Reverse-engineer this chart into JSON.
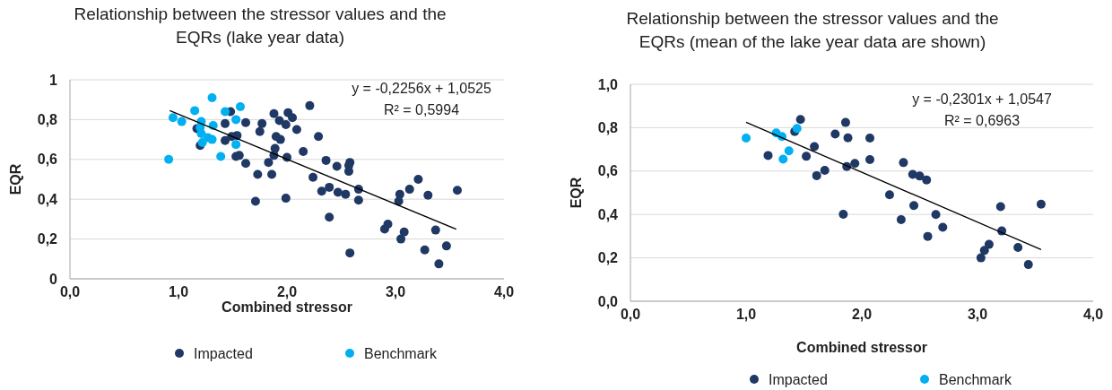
{
  "chart_data": [
    {
      "type": "scatter",
      "title": "Relationship between the stressor values and the EQRs (lake year data)",
      "xlabel": "Combined stressor",
      "ylabel": "EQR",
      "xlim": [
        0,
        4
      ],
      "ylim": [
        0,
        1
      ],
      "xticks": [
        {
          "value": 0,
          "label": "0,0"
        },
        {
          "value": 1,
          "label": "1,0"
        },
        {
          "value": 2,
          "label": "2,0"
        },
        {
          "value": 3,
          "label": "3,0"
        },
        {
          "value": 4,
          "label": "4,0"
        }
      ],
      "yticks": [
        0,
        {
          "value": 0.2,
          "label": "0,2"
        },
        {
          "value": 0.4,
          "label": "0,4"
        },
        {
          "value": 0.6,
          "label": "0,6"
        },
        {
          "value": 0.8,
          "label": "0,8"
        },
        1
      ],
      "grid": "y",
      "legend": "bottom",
      "marker": "circle",
      "annotations": [
        "y = -0,2256x + 1,0525",
        "R² = 0,5994"
      ],
      "series": [
        {
          "name": "Impacted",
          "color": "#1f3864",
          "x": [
            1.48,
            1.62,
            1.43,
            1.77,
            1.88,
            2.01,
            1.93,
            2.05,
            1.99,
            2.21,
            2.09,
            1.75,
            1.17,
            1.54,
            1.49,
            1.9,
            1.94,
            1.43,
            2.29,
            1.2,
            1.89,
            1.88,
            2.0,
            2.15,
            1.53,
            1.56,
            1.62,
            1.83,
            2.36,
            1.73,
            1.86,
            2.24,
            2.32,
            2.39,
            1.71,
            1.99,
            2.46,
            2.58,
            2.57,
            2.57,
            2.47,
            2.54,
            2.66,
            2.66,
            2.39,
            2.58,
            3.21,
            3.13,
            3.04,
            3.03,
            3.3,
            3.57,
            2.93,
            2.9,
            3.08,
            3.05,
            3.37,
            3.47,
            3.27,
            3.4
          ],
          "values": [
            0.84,
            0.785,
            0.78,
            0.78,
            0.83,
            0.835,
            0.795,
            0.81,
            0.775,
            0.87,
            0.75,
            0.74,
            0.755,
            0.72,
            0.715,
            0.715,
            0.7,
            0.695,
            0.715,
            0.67,
            0.655,
            0.62,
            0.61,
            0.64,
            0.615,
            0.62,
            0.58,
            0.585,
            0.595,
            0.525,
            0.525,
            0.51,
            0.44,
            0.46,
            0.39,
            0.405,
            0.565,
            0.585,
            0.57,
            0.54,
            0.435,
            0.425,
            0.45,
            0.395,
            0.31,
            0.13,
            0.5,
            0.45,
            0.425,
            0.39,
            0.42,
            0.445,
            0.275,
            0.25,
            0.235,
            0.2,
            0.245,
            0.165,
            0.145,
            0.075
          ]
        },
        {
          "name": "Benchmark",
          "color": "#00b0f0",
          "x": [
            1.31,
            1.15,
            0.95,
            1.03,
            1.43,
            1.57,
            1.53,
            1.21,
            1.32,
            1.2,
            1.21,
            1.27,
            1.31,
            1.22,
            1.53,
            1.39,
            0.91
          ],
          "values": [
            0.91,
            0.845,
            0.81,
            0.79,
            0.84,
            0.865,
            0.8,
            0.79,
            0.77,
            0.76,
            0.73,
            0.71,
            0.7,
            0.685,
            0.675,
            0.615,
            0.6
          ]
        },
        {
          "type": "line",
          "color": "#000000",
          "marker": "none",
          "x": [
            0.92,
            3.56
          ],
          "values": [
            0.845,
            0.249
          ]
        }
      ]
    },
    {
      "type": "scatter",
      "title": "Relationship between the stressor values and the EQRs (mean of the lake year data are shown)",
      "xlabel": "Combined stressor",
      "ylabel": "EQR",
      "xlim": [
        0,
        4
      ],
      "ylim": [
        0,
        1
      ],
      "xticks": [
        {
          "value": 0,
          "label": "0,0"
        },
        {
          "value": 1,
          "label": "1,0"
        },
        {
          "value": 2,
          "label": "2,0"
        },
        {
          "value": 3,
          "label": "3,0"
        },
        {
          "value": 4,
          "label": "4,0"
        }
      ],
      "yticks": [
        {
          "value": 0,
          "label": "0,0"
        },
        {
          "value": 0.2,
          "label": "0,2"
        },
        {
          "value": 0.4,
          "label": "0,4"
        },
        {
          "value": 0.6,
          "label": "0,6"
        },
        {
          "value": 0.8,
          "label": "0,8"
        },
        {
          "value": 1,
          "label": "1,0"
        }
      ],
      "grid": "y",
      "legend": "bottom",
      "marker": "circle",
      "annotations": [
        "y = -0,2301x + 1,0547",
        "R² = 0,6963"
      ],
      "series": [
        {
          "name": "Impacted",
          "color": "#1f3864",
          "x": [
            1.47,
            1.42,
            1.19,
            1.52,
            1.59,
            1.61,
            1.68,
            1.77,
            1.86,
            1.88,
            2.07,
            1.87,
            1.94,
            2.07,
            1.84,
            2.36,
            2.24,
            2.45,
            2.34,
            2.44,
            2.5,
            2.56,
            2.57,
            2.64,
            2.7,
            3.2,
            3.55,
            3.21,
            3.35,
            3.1,
            3.06,
            3.03,
            3.44
          ],
          "values": [
            0.838,
            0.782,
            0.672,
            0.668,
            0.713,
            0.579,
            0.603,
            0.771,
            0.824,
            0.753,
            0.752,
            0.621,
            0.635,
            0.653,
            0.401,
            0.639,
            0.491,
            0.441,
            0.376,
            0.585,
            0.577,
            0.559,
            0.299,
            0.4,
            0.341,
            0.436,
            0.447,
            0.324,
            0.248,
            0.262,
            0.234,
            0.2,
            0.169
          ]
        },
        {
          "name": "Benchmark",
          "color": "#00b0f0",
          "x": [
            1.0,
            1.26,
            1.31,
            1.37,
            1.32,
            1.44
          ],
          "values": [
            0.752,
            0.776,
            0.759,
            0.693,
            0.655,
            0.796
          ]
        },
        {
          "type": "line",
          "color": "#000000",
          "marker": "none",
          "x": [
            1.0,
            3.55
          ],
          "values": [
            0.825,
            0.238
          ]
        }
      ]
    }
  ]
}
